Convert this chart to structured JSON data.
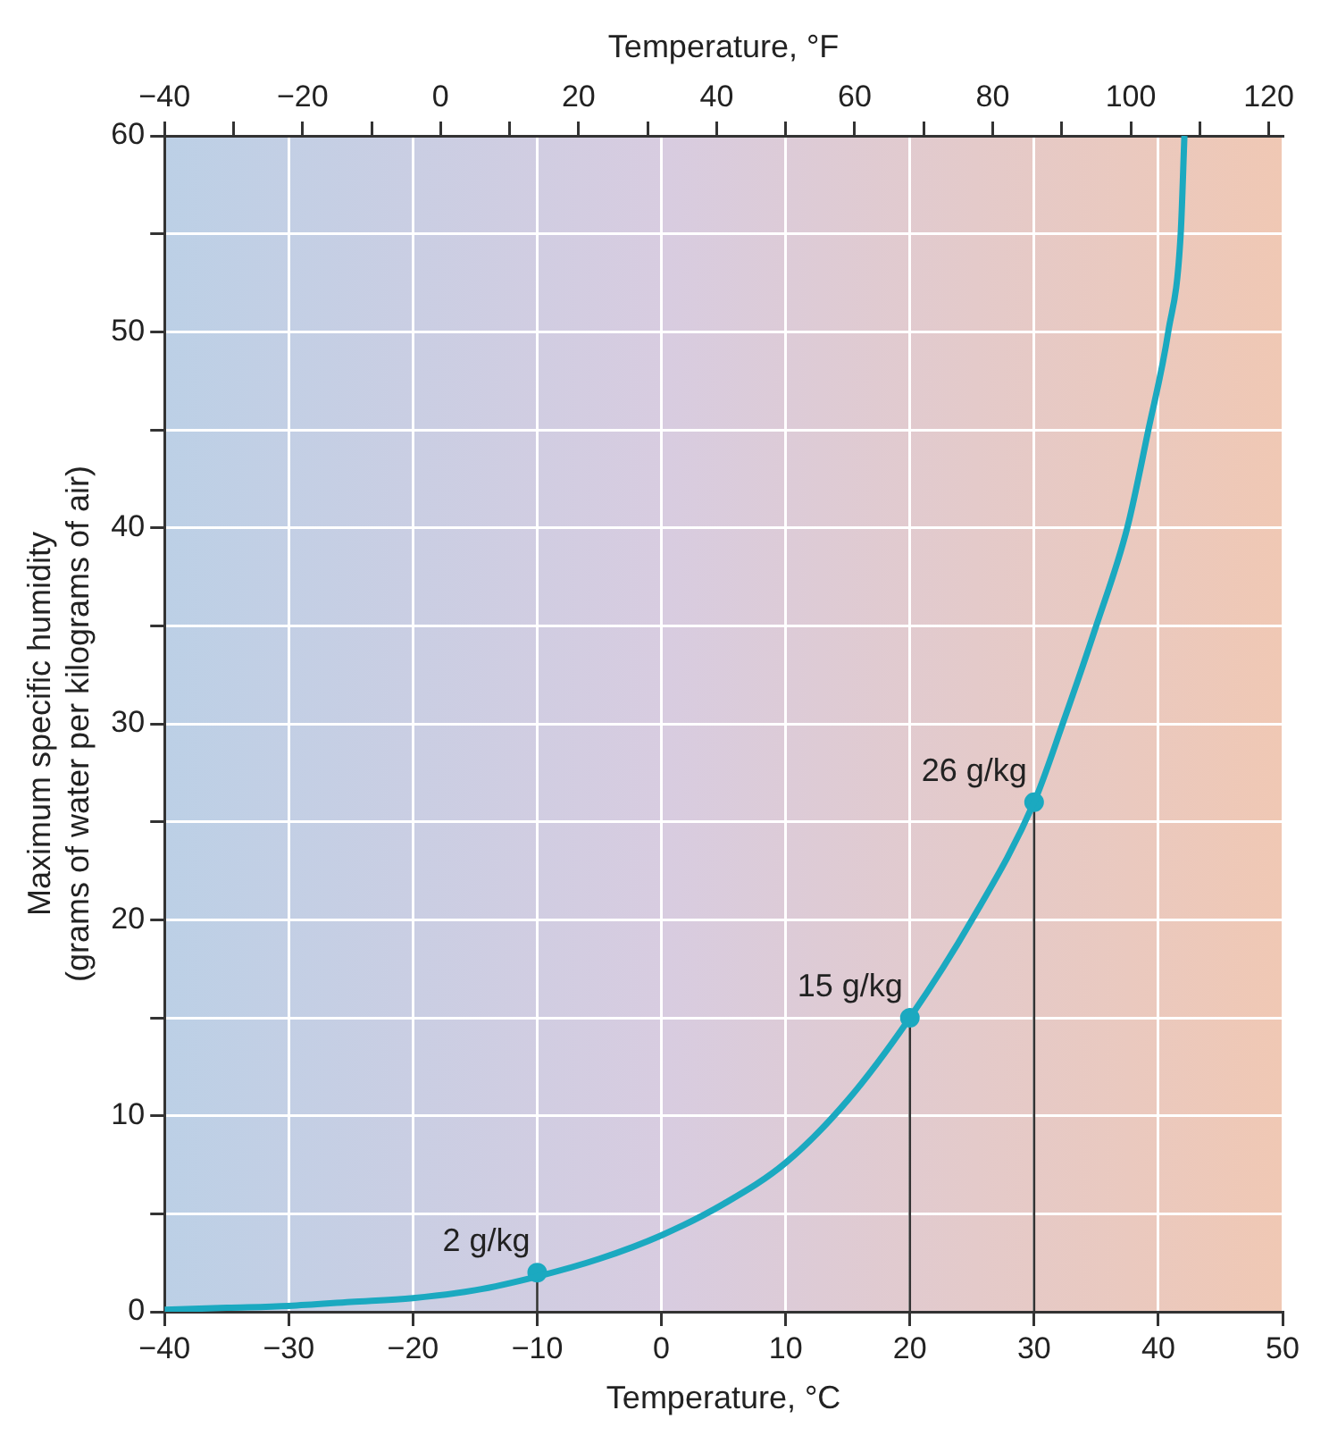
{
  "chart_data": {
    "type": "line",
    "xlabel": "Temperature, °C",
    "x2label": "Temperature, °F",
    "ylabel": "Maximum specific humidity\n(grams of water per kilograms of air)",
    "xlim": [
      -40,
      50
    ],
    "xticks": [
      -40,
      -30,
      -20,
      -10,
      0,
      10,
      20,
      30,
      40,
      50
    ],
    "x2lim": [
      -40,
      122
    ],
    "x2ticks": [
      -40,
      {
        "value": -30,
        "label": null
      },
      -20,
      {
        "value": -10,
        "label": null
      },
      0,
      {
        "value": 10,
        "label": null
      },
      20,
      {
        "value": 30,
        "label": null
      },
      40,
      {
        "value": 50,
        "label": null
      },
      60,
      {
        "value": 70,
        "label": null
      },
      80,
      {
        "value": 90,
        "label": null
      },
      100,
      {
        "value": 110,
        "label": null
      },
      120
    ],
    "ylim": [
      0,
      60
    ],
    "yticks": [
      0,
      {
        "value": 5,
        "label": null
      },
      10,
      {
        "value": 15,
        "label": null
      },
      20,
      {
        "value": 25,
        "label": null
      },
      30,
      {
        "value": 35,
        "label": null
      },
      40,
      {
        "value": 45,
        "label": null
      },
      50,
      {
        "value": 55,
        "label": null
      },
      60
    ],
    "grid": true,
    "legend": false,
    "series": [
      {
        "color": "#1ba9c0",
        "marker": "none",
        "x": [
          -40,
          -35,
          -30,
          -25,
          -20,
          -15,
          -10,
          -5,
          0,
          5,
          10,
          15,
          20,
          25,
          30,
          32.3,
          35,
          37.5,
          39.2,
          40.8,
          41.8,
          42.1
        ],
        "values": [
          0.1,
          0.2,
          0.3,
          0.5,
          0.7,
          1.1,
          1.8,
          2.7,
          3.9,
          5.5,
          7.6,
          10.8,
          15,
          20,
          26,
          30,
          35,
          40,
          45,
          50,
          55,
          60
        ]
      },
      {
        "type": "lollipop",
        "color": "#1ba9c0",
        "marker": "circle",
        "x": [
          -10,
          20,
          30
        ],
        "values": [
          2,
          15,
          26
        ],
        "value_labels": [
          "2 g/kg",
          "15 g/kg",
          "26 g/kg"
        ]
      }
    ]
  }
}
